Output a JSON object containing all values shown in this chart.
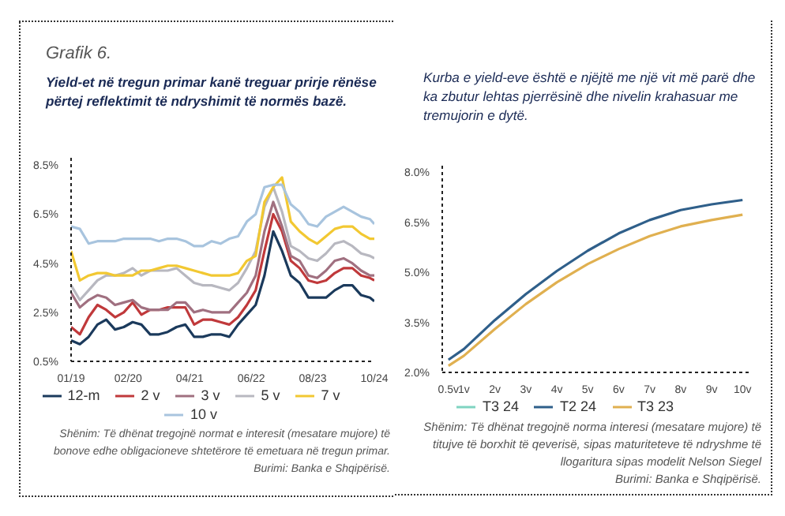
{
  "chart_data": [
    {
      "type": "line",
      "title": "Grafik 6.",
      "subtitle": "Yield-et në tregun primar kanë treguar prirje rënëse përtej reflektimit të ndryshimit të normës bazë.",
      "x": [
        "2019-01",
        "2019-03",
        "2019-05",
        "2019-07",
        "2019-09",
        "2019-11",
        "2020-01",
        "2020-03",
        "2020-05",
        "2020-07",
        "2020-09",
        "2020-11",
        "2021-01",
        "2021-03",
        "2021-05",
        "2021-07",
        "2021-09",
        "2021-11",
        "2022-01",
        "2022-03",
        "2022-05",
        "2022-07",
        "2022-09",
        "2022-11",
        "2023-01",
        "2023-03",
        "2023-05",
        "2023-07",
        "2023-09",
        "2023-11",
        "2024-01",
        "2024-03",
        "2024-05",
        "2024-07",
        "2024-09",
        "2024-10"
      ],
      "series": [
        {
          "name": "12-m",
          "color": "#1b3a5c",
          "values": [
            1.35,
            1.2,
            1.5,
            2.0,
            2.2,
            1.8,
            1.9,
            2.1,
            2.0,
            1.6,
            1.6,
            1.7,
            1.9,
            2.0,
            1.5,
            1.5,
            1.6,
            1.6,
            1.5,
            2.0,
            2.4,
            2.8,
            4.0,
            5.8,
            5.0,
            4.0,
            3.7,
            3.1,
            3.1,
            3.1,
            3.4,
            3.6,
            3.6,
            3.2,
            3.1,
            2.95
          ]
        },
        {
          "name": "2 v",
          "color": "#c0393b",
          "values": [
            1.9,
            1.6,
            2.3,
            2.8,
            2.6,
            2.3,
            2.5,
            2.9,
            2.4,
            2.6,
            2.6,
            2.7,
            2.7,
            2.7,
            2.0,
            2.2,
            2.2,
            2.1,
            2.0,
            2.3,
            2.8,
            3.4,
            5.0,
            6.5,
            5.8,
            4.6,
            4.3,
            3.8,
            3.7,
            3.8,
            4.1,
            4.3,
            4.3,
            4.0,
            3.9,
            3.8
          ]
        },
        {
          "name": "3 v",
          "color": "#a07080",
          "values": [
            3.3,
            2.7,
            3.0,
            3.2,
            3.1,
            2.8,
            2.9,
            3.0,
            2.7,
            2.6,
            2.6,
            2.6,
            2.9,
            2.9,
            2.5,
            2.6,
            2.5,
            2.5,
            2.5,
            2.9,
            3.3,
            4.0,
            5.8,
            7.0,
            6.0,
            4.8,
            4.6,
            4.0,
            3.9,
            4.2,
            4.6,
            4.7,
            4.5,
            4.2,
            4.0,
            4.0
          ]
        },
        {
          "name": "5 v",
          "color": "#b8b8c0",
          "values": [
            3.6,
            3.0,
            3.4,
            3.8,
            4.0,
            4.0,
            4.1,
            4.3,
            4.0,
            4.2,
            4.2,
            4.2,
            4.3,
            4.0,
            3.7,
            3.6,
            3.6,
            3.5,
            3.4,
            3.7,
            4.3,
            5.0,
            6.8,
            7.6,
            6.6,
            5.2,
            5.0,
            4.7,
            4.6,
            4.9,
            5.3,
            5.4,
            5.2,
            4.9,
            4.8,
            4.7
          ]
        },
        {
          "name": "7 v",
          "color": "#f2c832",
          "values": [
            5.0,
            3.8,
            4.0,
            4.1,
            4.1,
            4.0,
            4.0,
            4.0,
            4.2,
            4.2,
            4.3,
            4.4,
            4.4,
            4.3,
            4.2,
            4.1,
            4.0,
            4.0,
            4.0,
            4.1,
            4.6,
            4.8,
            7.0,
            7.6,
            8.0,
            6.2,
            5.8,
            5.5,
            5.3,
            5.6,
            5.9,
            6.0,
            6.0,
            5.7,
            5.5,
            5.5
          ]
        },
        {
          "name": "10 v",
          "color": "#a8c4de",
          "values": [
            6.0,
            5.9,
            5.3,
            5.4,
            5.4,
            5.4,
            5.5,
            5.5,
            5.5,
            5.5,
            5.4,
            5.5,
            5.5,
            5.4,
            5.2,
            5.2,
            5.4,
            5.3,
            5.5,
            5.6,
            6.2,
            6.5,
            7.6,
            7.7,
            7.7,
            6.9,
            6.6,
            6.1,
            6.0,
            6.4,
            6.6,
            6.8,
            6.6,
            6.4,
            6.3,
            6.1
          ]
        }
      ],
      "xlim": [
        "2019-01",
        "2024-10"
      ],
      "xticks": [
        {
          "value": "2019-01",
          "label": "01/19"
        },
        {
          "value": "2020-02",
          "label": "02/20"
        },
        {
          "value": "2021-04",
          "label": "04/21"
        },
        {
          "value": "2022-06",
          "label": "06/22"
        },
        {
          "value": "2023-08",
          "label": "08/23"
        },
        {
          "value": "2024-10",
          "label": "10/24"
        }
      ],
      "ylim": [
        0.5,
        8.8
      ],
      "yticks": [
        {
          "value": 0.5,
          "label": "0.5%"
        },
        {
          "value": 2.5,
          "label": "2.5%"
        },
        {
          "value": 4.5,
          "label": "4.5%"
        },
        {
          "value": 6.5,
          "label": "6.5%"
        },
        {
          "value": 8.5,
          "label": "8.5%"
        }
      ],
      "legend": "bottom",
      "annotations": [
        "Shënim: Të dhënat tregojnë normat e interesit (mesatare mujore) të bonove edhe obligacioneve shtetërore të emetuara në tregun primar.",
        "Burimi: Banka e Shqipërisë."
      ]
    },
    {
      "type": "line",
      "title": "Kurba e yield-eve është e njëjtë me një vit më parë dhe ka zbutur lehtas pjerrësinë dhe nivelin krahasuar me tremujorin e dytë.",
      "x": [
        0.5,
        1,
        2,
        3,
        4,
        5,
        6,
        7,
        8,
        9,
        10
      ],
      "series": [
        {
          "name": "T3 24",
          "color": "#7fd4c1",
          "values": [
            null,
            null,
            null,
            null,
            null,
            null,
            null,
            null,
            null,
            null,
            null
          ]
        },
        {
          "name": "T2 24",
          "color": "#2f5f8a",
          "values": [
            2.38,
            2.7,
            3.57,
            4.35,
            5.04,
            5.65,
            6.17,
            6.57,
            6.87,
            7.04,
            7.17
          ]
        },
        {
          "name": "T3 23",
          "color": "#e0b050",
          "values": [
            2.2,
            2.5,
            3.3,
            4.05,
            4.7,
            5.25,
            5.7,
            6.09,
            6.38,
            6.57,
            6.73
          ]
        }
      ],
      "xlim": [
        0.3,
        10.3
      ],
      "xticks": [
        {
          "value": 0.5,
          "label": "0.5v"
        },
        {
          "value": 1,
          "label": "1v"
        },
        {
          "value": 2,
          "label": "2v"
        },
        {
          "value": 3,
          "label": "3v"
        },
        {
          "value": 4,
          "label": "4v"
        },
        {
          "value": 5,
          "label": "5v"
        },
        {
          "value": 6,
          "label": "6v"
        },
        {
          "value": 7,
          "label": "7v"
        },
        {
          "value": 8,
          "label": "8v"
        },
        {
          "value": 9,
          "label": "9v"
        },
        {
          "value": 10,
          "label": "10v"
        }
      ],
      "ylim": [
        2.0,
        8.2
      ],
      "yticks": [
        {
          "value": 2.0,
          "label": "2.0%"
        },
        {
          "value": 3.5,
          "label": "3.5%"
        },
        {
          "value": 5.0,
          "label": "5.0%"
        },
        {
          "value": 6.5,
          "label": "6.5%"
        },
        {
          "value": 8.0,
          "label": "8.0%"
        }
      ],
      "legend": "bottom",
      "annotations": [
        "Shënim: Të dhënat tregojnë norma interesi (mesatare mujore) të titujve të borxhit të qeverisë, sipas maturiteteve të ndryshme të llogaritura sipas modelit Nelson Siegel",
        "Burimi: Banka e Shqipërisë."
      ]
    }
  ]
}
